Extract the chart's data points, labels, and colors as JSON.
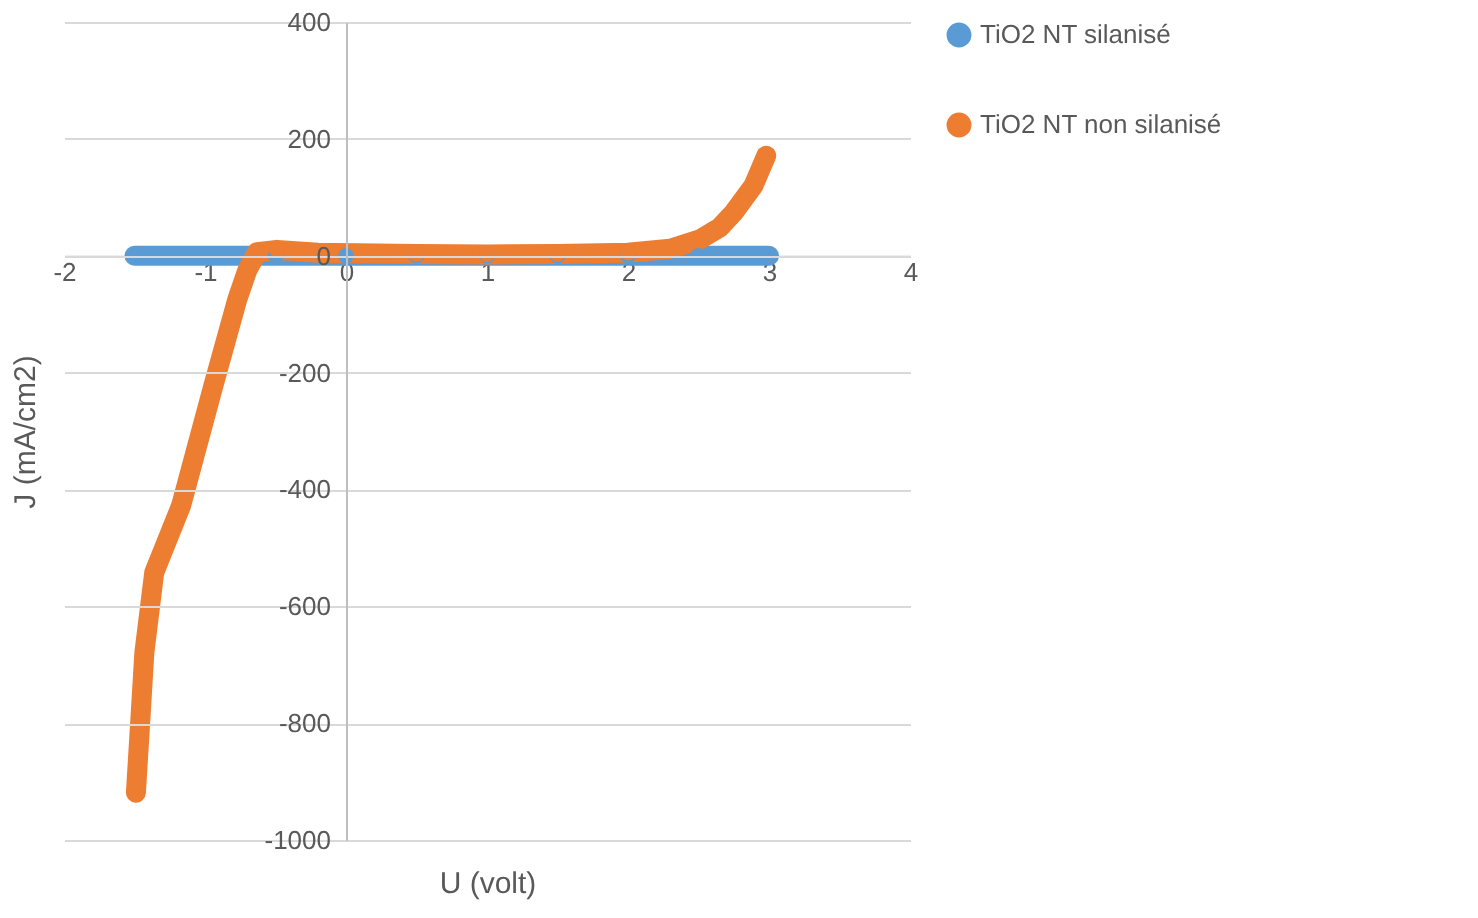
{
  "chart_data": {
    "type": "line",
    "xlabel": "U  (volt)",
    "ylabel": "J (mA/cm2)",
    "xlim": [
      -2,
      4
    ],
    "xticks": [
      -2,
      -1,
      0,
      1,
      2,
      3,
      4
    ],
    "ylim": [
      -1000,
      400
    ],
    "yticks": [
      -1000,
      -800,
      -600,
      -400,
      -200,
      0,
      200,
      400
    ],
    "grid": "y",
    "legend": "right",
    "marker": "circle",
    "line_style": "solid",
    "series": [
      {
        "name": "TiO2 NT silanisé",
        "color": "#5b9bd5",
        "x": [
          -1.5,
          -1,
          -0.5,
          0,
          0.5,
          1,
          1.5,
          2,
          2.5,
          3
        ],
        "values": [
          0,
          0,
          0,
          0,
          0,
          0,
          0,
          0,
          0,
          0
        ]
      },
      {
        "name": "TiO2 NT non silanisé",
        "color": "#ed7d31",
        "x": [
          -1.49,
          -1.46,
          -1.43,
          -1.36,
          -1.17,
          -0.94,
          -0.77,
          -0.7,
          -0.63,
          -0.49,
          -0.2,
          0.5,
          1,
          1.5,
          2,
          2.3,
          2.51,
          2.65,
          2.75,
          2.89,
          2.98
        ],
        "values": [
          -919,
          -800,
          -679,
          -542,
          -428,
          -222,
          -74,
          -25,
          6,
          10,
          5,
          3,
          2,
          3,
          5,
          12,
          28,
          48,
          74,
          120,
          171
        ]
      }
    ]
  }
}
